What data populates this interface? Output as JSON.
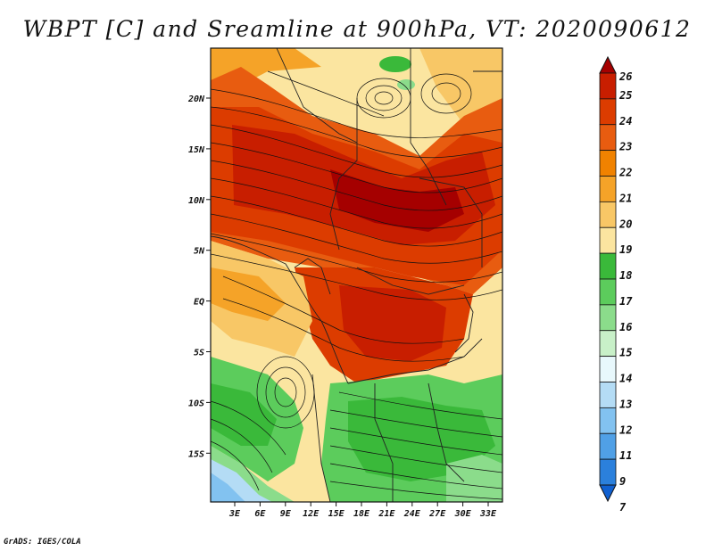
{
  "title": "WBPT [C] and Sreamline at 900hPa, VT: 2020090612",
  "credit": "GrADS: IGES/COLA",
  "map": {
    "lat_labels": [
      "20N",
      "15N",
      "10N",
      "5N",
      "EQ",
      "5S",
      "10S",
      "15S"
    ],
    "lon_labels": [
      "3E",
      "6E",
      "9E",
      "12E",
      "15E",
      "18E",
      "21E",
      "24E",
      "27E",
      "30E",
      "33E"
    ]
  },
  "colorbar": {
    "levels": [
      "26",
      "25",
      "24",
      "23",
      "22",
      "21",
      "20",
      "19",
      "18",
      "17",
      "16",
      "15",
      "14",
      "13",
      "12",
      "11",
      "9",
      "7"
    ],
    "colors": [
      "#a50000",
      "#c81e00",
      "#dc3c00",
      "#e85c10",
      "#f08200",
      "#f5a328",
      "#f8c766",
      "#fbe5a0",
      "#3ab93a",
      "#5ccc5c",
      "#8bdc8b",
      "#c8f0c8",
      "#e8f8fc",
      "#b4dcf5",
      "#82c2f0",
      "#50a0e6",
      "#2b80dc",
      "#1060d0"
    ]
  }
}
